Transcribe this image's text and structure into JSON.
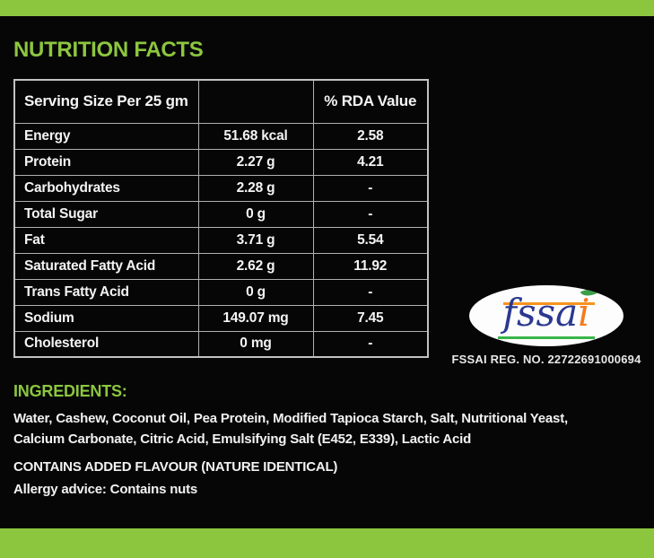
{
  "colors": {
    "accent_green": "#8cc63e",
    "background": "#060606",
    "table_border": "#b0b0b0",
    "text_white": "#f2f2f2",
    "fssai_blue": "#2b3990",
    "fssai_orange": "#f7941d",
    "fssai_leaf_green": "#39b54a"
  },
  "header": {
    "title": "NUTRITION FACTS"
  },
  "nutrition_table": {
    "columns": [
      "Serving Size Per 25 gm",
      "",
      "% RDA Value"
    ],
    "rows": [
      {
        "nutrient": "Energy",
        "amount": "51.68 kcal",
        "rda": "2.58"
      },
      {
        "nutrient": "Protein",
        "amount": "2.27 g",
        "rda": "4.21"
      },
      {
        "nutrient": "Carbohydrates",
        "amount": "2.28 g",
        "rda": "-"
      },
      {
        "nutrient": "Total Sugar",
        "amount": "0 g",
        "rda": "-"
      },
      {
        "nutrient": "Fat",
        "amount": "3.71 g",
        "rda": "5.54"
      },
      {
        "nutrient": "Saturated Fatty Acid",
        "amount": "2.62 g",
        "rda": "11.92"
      },
      {
        "nutrient": "Trans Fatty Acid",
        "amount": "0 g",
        "rda": "-"
      },
      {
        "nutrient": "Sodium",
        "amount": "149.07 mg",
        "rda": "7.45"
      },
      {
        "nutrient": "Cholesterol",
        "amount": "0 mg",
        "rda": "-"
      }
    ]
  },
  "fssai": {
    "logo_word_main": "fssa",
    "logo_word_i": "i",
    "reg_label": "FSSAI REG. NO. 22722691000694"
  },
  "ingredients": {
    "heading": "INGREDIENTS:",
    "text": "Water, Cashew, Coconut Oil, Pea Protein, Modified Tapioca Starch, Salt, Nutritional Yeast, Calcium Carbonate, Citric Acid, Emulsifying Salt (E452, E339), Lactic Acid"
  },
  "notes": {
    "flavour": "CONTAINS ADDED FLAVOUR (NATURE IDENTICAL)",
    "allergy": "Allergy advice: Contains nuts"
  }
}
